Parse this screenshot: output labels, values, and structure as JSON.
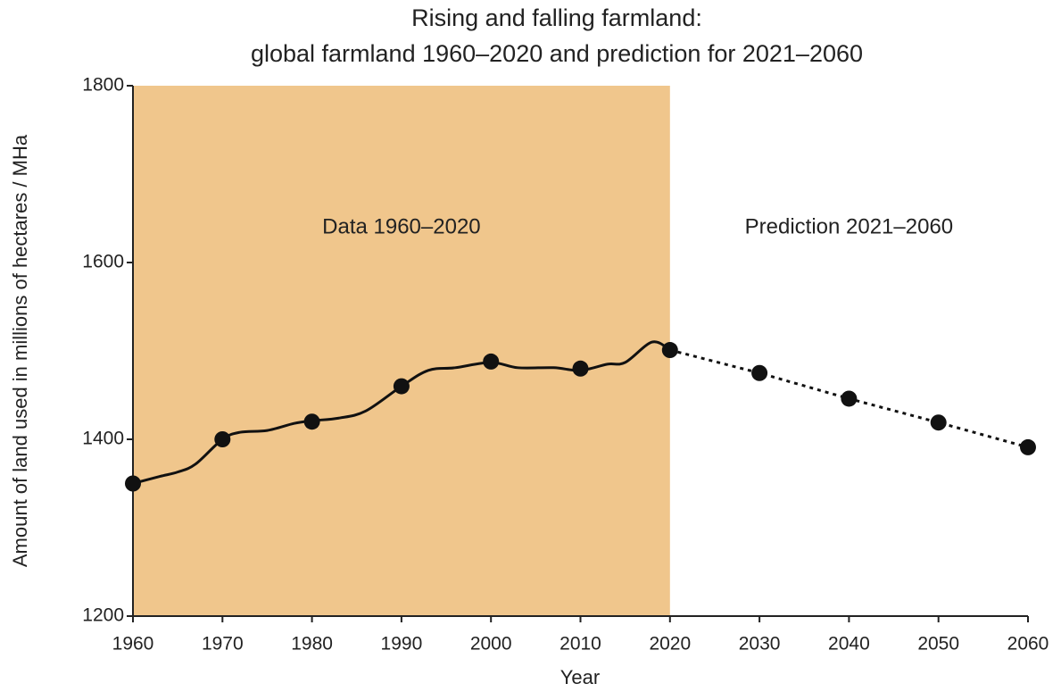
{
  "chart_data": {
    "type": "line",
    "title": "Rising and falling farmland:",
    "subtitle": "global farmland 1960–2020 and prediction for 2021–2060",
    "xlabel": "Year",
    "ylabel": "Amount of land used in millions of hectares / MHa",
    "xlim": [
      1960,
      2060
    ],
    "xticks": [
      1960,
      1970,
      1980,
      1990,
      2000,
      2010,
      2020,
      2030,
      2040,
      2050,
      2060
    ],
    "ylim": [
      1200,
      1800
    ],
    "yticks": [
      1200,
      1400,
      1600,
      1800
    ],
    "shaded_region": {
      "xlim": [
        1960,
        2020
      ],
      "color": "#f0c68c",
      "label": "Data 1960–2020"
    },
    "annotation": "Prediction 2021–2060",
    "series": [
      {
        "color": "#111111",
        "style": "solid",
        "smooth": true,
        "markers": false,
        "x": [
          1960,
          1963,
          1965,
          1967,
          1970,
          1972,
          1975,
          1978,
          1980,
          1983,
          1986,
          1990,
          1993,
          1996,
          2000,
          2003,
          2007,
          2010,
          2013,
          2015,
          2018,
          2020
        ],
        "values": [
          1350,
          1358,
          1363,
          1372,
          1400,
          1408,
          1410,
          1418,
          1421,
          1424,
          1432,
          1460,
          1478,
          1481,
          1487,
          1481,
          1481,
          1478,
          1485,
          1487,
          1510,
          1501
        ]
      },
      {
        "color": "#111111",
        "style": "none",
        "markers": true,
        "x": [
          1960,
          1970,
          1980,
          1990,
          2000,
          2010
        ],
        "values": [
          1350,
          1400,
          1420,
          1460,
          1488,
          1480
        ]
      },
      {
        "color": "#111111",
        "style": "dotted",
        "markers": true,
        "x": [
          2020,
          2030,
          2040,
          2050,
          2060
        ],
        "values": [
          1501,
          1475,
          1446,
          1419,
          1391
        ]
      }
    ]
  }
}
